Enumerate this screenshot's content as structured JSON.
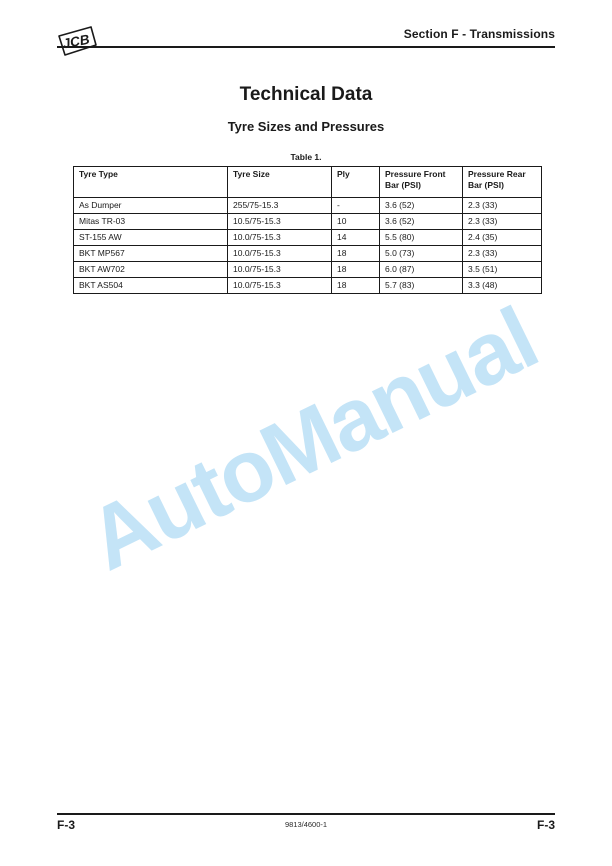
{
  "header": {
    "logo_text": "JCB",
    "section_title": "Section F - Transmissions"
  },
  "title": "Technical Data",
  "subtitle": "Tyre Sizes and Pressures",
  "table": {
    "caption": "Table 1.",
    "columns": [
      "Tyre Type",
      "Tyre Size",
      "Ply",
      "Pressure Front Bar (PSI)",
      "Pressure Rear Bar (PSI)"
    ],
    "rows": [
      [
        "As Dumper",
        "255/75-15.3",
        "-",
        "3.6 (52)",
        "2.3 (33)"
      ],
      [
        "Mitas TR-03",
        "10.5/75-15.3",
        "10",
        "3.6 (52)",
        "2.3 (33)"
      ],
      [
        "ST-155 AW",
        "10.0/75-15.3",
        "14",
        "5.5 (80)",
        "2.4 (35)"
      ],
      [
        "BKT MP567",
        "10.0/75-15.3",
        "18",
        "5.0 (73)",
        "2.3 (33)"
      ],
      [
        "BKT AW702",
        "10.0/75-15.3",
        "18",
        "6.0 (87)",
        "3.5 (51)"
      ],
      [
        "BKT AS504",
        "10.0/75-15.3",
        "18",
        "5.7 (83)",
        "3.3 (48)"
      ]
    ]
  },
  "watermark": {
    "text": "AutoManual",
    "color": "#c4e4f7"
  },
  "footer": {
    "page_left": "F-3",
    "doc_number": "9813/4600-1",
    "page_right": "F-3"
  }
}
